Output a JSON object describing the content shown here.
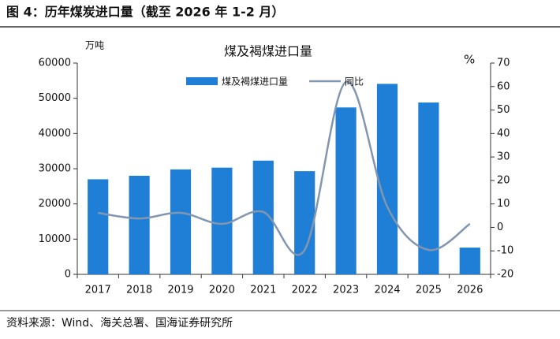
{
  "header": "图 4：历年煤炭进口量（截至 2026 年 1-2 月）",
  "source": "资料来源：Wind、海关总署、国海证券研究所",
  "chart_data": {
    "type": "bar-line",
    "title": "煤及褐煤进口量",
    "y_label": "万吨",
    "y2_label": "%",
    "categories": [
      "2017",
      "2018",
      "2019",
      "2020",
      "2021",
      "2022",
      "2023",
      "2024",
      "2025",
      "2026"
    ],
    "series": [
      {
        "name": "煤及褐煤进口量",
        "type": "bar",
        "color": "#1f7fd6",
        "values": [
          27000,
          28000,
          29800,
          30300,
          32300,
          29300,
          47400,
          54100,
          48800,
          7600
        ]
      },
      {
        "name": "同比",
        "type": "line",
        "axis": "y2",
        "color": "#8296b0",
        "values": [
          6.2,
          3.8,
          6.2,
          1.5,
          6.6,
          -9.6,
          62,
          8.8,
          -9.6,
          1.5
        ]
      }
    ],
    "ylim": [
      0,
      60000
    ],
    "yticks": [
      0,
      10000,
      20000,
      30000,
      40000,
      50000,
      60000
    ],
    "y2lim": [
      -20,
      70
    ],
    "y2ticks": [
      -20,
      -10,
      0,
      10,
      20,
      30,
      40,
      50,
      60,
      70
    ],
    "legend": "top",
    "grid": false
  }
}
